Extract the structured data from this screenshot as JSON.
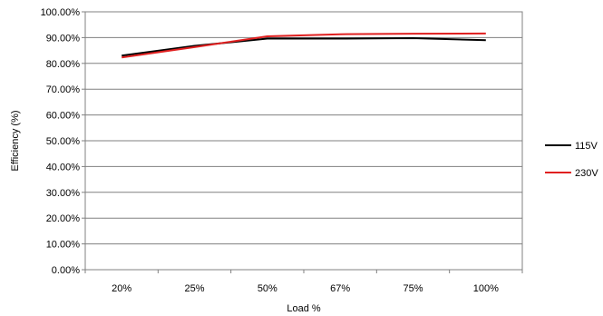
{
  "chart_data": {
    "type": "line",
    "categories": [
      "20%",
      "25%",
      "50%",
      "67%",
      "75%",
      "100%"
    ],
    "series": [
      {
        "name": "115V",
        "color": "#000000",
        "values": [
          83.0,
          86.8,
          89.6,
          89.6,
          89.8,
          89.0
        ]
      },
      {
        "name": "230V",
        "color": "#e02020",
        "values": [
          82.3,
          86.3,
          90.5,
          91.3,
          91.5,
          91.6
        ]
      }
    ],
    "xlabel": "Load %",
    "ylabel": "Efficiency (%)",
    "ylim": [
      0,
      100
    ],
    "yticks": [
      "0.00%",
      "10.00%",
      "20.00%",
      "30.00%",
      "40.00%",
      "50.00%",
      "60.00%",
      "70.00%",
      "80.00%",
      "90.00%",
      "100.00%"
    ],
    "grid": "horizontal",
    "legend": "right"
  }
}
